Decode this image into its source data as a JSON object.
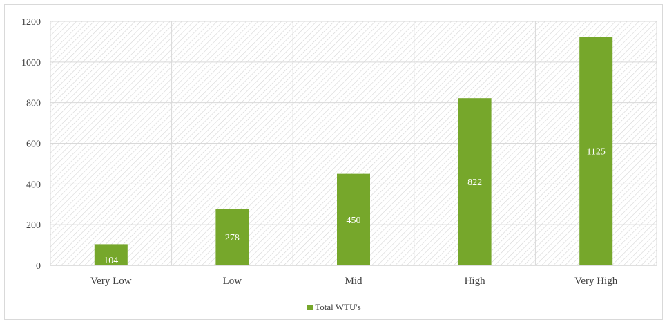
{
  "chart_data": {
    "type": "bar",
    "categories": [
      "Very Low",
      "Low",
      "Mid",
      "High",
      "Very High"
    ],
    "series": [
      {
        "name": "Total WTU's",
        "values": [
          104,
          278,
          450,
          822,
          1125
        ],
        "color": "#76a72b"
      }
    ],
    "ylim": [
      0,
      1200
    ],
    "yticks": [
      "0",
      "200",
      "400",
      "600",
      "800",
      "1000",
      "1200"
    ],
    "data_labels": [
      "104",
      "278",
      "450",
      "822",
      "1125"
    ],
    "grid": true,
    "legend_position": "bottom",
    "plot_background": "diagonal-hatch"
  }
}
